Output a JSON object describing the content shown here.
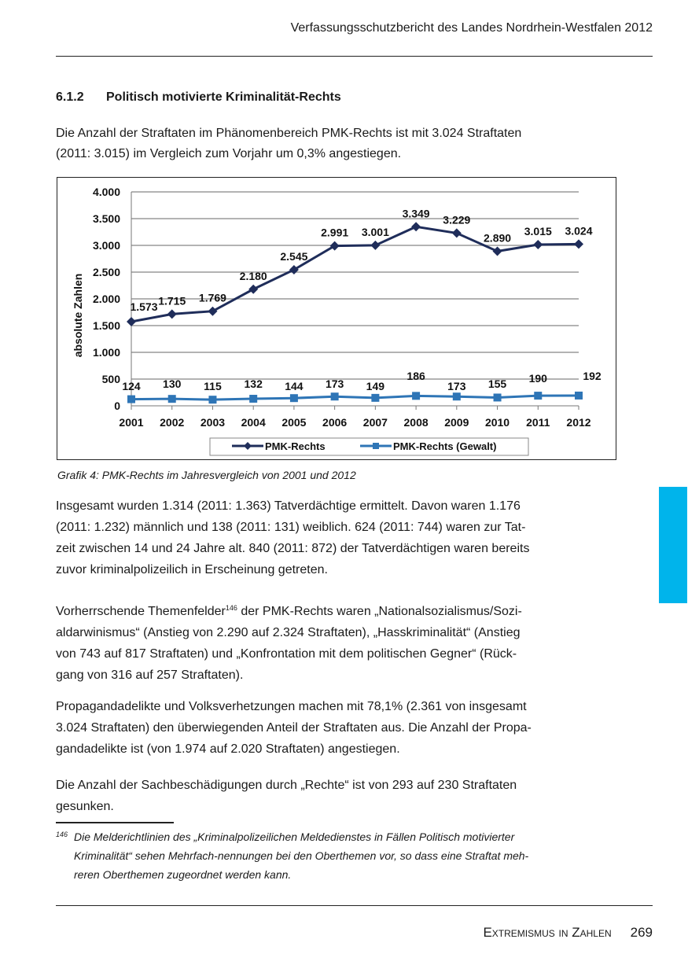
{
  "header": {
    "title": "Verfassungsschutzbericht des Landes Nordrhein-Westfalen 2012"
  },
  "section": {
    "number": "6.1.2",
    "title": "Politisch motivierte Kriminalität-Rechts"
  },
  "intro_lines": [
    "Die Anzahl der Straftaten im Phänomenbereich PMK-Rechts ist mit 3.024 Straftaten",
    "(2011: 3.015) im Vergleich zum Vorjahr um 0,3% angestiegen."
  ],
  "chart_data": {
    "type": "line",
    "categories": [
      "2001",
      "2002",
      "2003",
      "2004",
      "2005",
      "2006",
      "2007",
      "2008",
      "2009",
      "2010",
      "2011",
      "2012"
    ],
    "series": [
      {
        "name": "PMK-Rechts",
        "values": [
          1573,
          1715,
          1769,
          2180,
          2545,
          2991,
          3001,
          3349,
          3229,
          2890,
          3015,
          3024
        ],
        "labels": [
          "1.573",
          "1.715",
          "1.769",
          "2.180",
          "2.545",
          "2.991",
          "3.001",
          "3.349",
          "3.229",
          "2.890",
          "3.015",
          "3.024"
        ],
        "color": "#1f2d5a",
        "marker": "diamond"
      },
      {
        "name": "PMK-Rechts (Gewalt)",
        "values": [
          124,
          130,
          115,
          132,
          144,
          173,
          149,
          186,
          173,
          155,
          190,
          192
        ],
        "labels": [
          "124",
          "130",
          "115",
          "132",
          "144",
          "173",
          "149",
          "186",
          "173",
          "155",
          "190",
          "192"
        ],
        "color": "#2e75b6",
        "marker": "square"
      }
    ],
    "ylabel": "absolute Zahlen",
    "ylim": [
      0,
      4000
    ],
    "yticks": [
      0,
      500,
      1000,
      1500,
      2000,
      2500,
      3000,
      3500,
      4000
    ],
    "ytick_labels": [
      "0",
      "500",
      "1.000",
      "1.500",
      "2.000",
      "2.500",
      "3.000",
      "3.500",
      "4.000"
    ],
    "grid": true,
    "legend": "bottom"
  },
  "caption": "Grafik 4: PMK-Rechts im Jahresvergleich von 2001 und 2012",
  "para2_lines": [
    "Insgesamt wurden 1.314 (2011: 1.363) Tatverdächtige ermittelt. Davon waren 1.176",
    "(2011: 1.232) männlich und 138 (2011: 131) weiblich. 624 (2011: 744) waren zur Tat-",
    "zeit zwischen 14 und 24 Jahre alt. 840 (2011: 872) der Tatverdächtigen waren bereits",
    "zuvor kriminalpolizeilich in Erscheinung getreten."
  ],
  "para3": {
    "first_before": "Vorherrschende Themenfelder",
    "footnote_ref": "146",
    "first_after": " der PMK-Rechts waren „Nationalsozialismus/Sozi-",
    "lines": [
      "aldarwinismus“ (Anstieg von 2.290 auf 2.324 Straftaten), „Hasskriminalität“ (Anstieg",
      "von 743 auf 817 Straftaten) und „Konfrontation mit dem politischen Gegner“ (Rück-",
      "gang von 316 auf 257 Straftaten)."
    ]
  },
  "para4_lines": [
    "Propagandadelikte und Volksverhetzungen machen mit 78,1% (2.361 von insgesamt",
    "3.024 Straftaten) den überwiegenden Anteil der Straftaten aus. Die Anzahl der Propa-",
    "gandadelikte ist (von 1.974 auf 2.020 Straftaten) angestiegen."
  ],
  "para5_lines": [
    "Die Anzahl der Sachbeschädigungen durch „Rechte“ ist von 293 auf 230 Straftaten",
    "gesunken."
  ],
  "footnote": {
    "number": "146",
    "lines": [
      "Die Melderichtlinien des „Kriminalpolizeilichen Meldedienstes in Fällen Politisch motivierter",
      "Kriminalität“ sehen Mehrfach-nennungen bei den Oberthemen vor, so dass eine Straftat meh-",
      "reren Oberthemen zugeordnet werden kann."
    ]
  },
  "footer": {
    "section": "Extremismus in Zahlen",
    "page": "269"
  },
  "colors": {
    "tab": "#00b4eb"
  }
}
